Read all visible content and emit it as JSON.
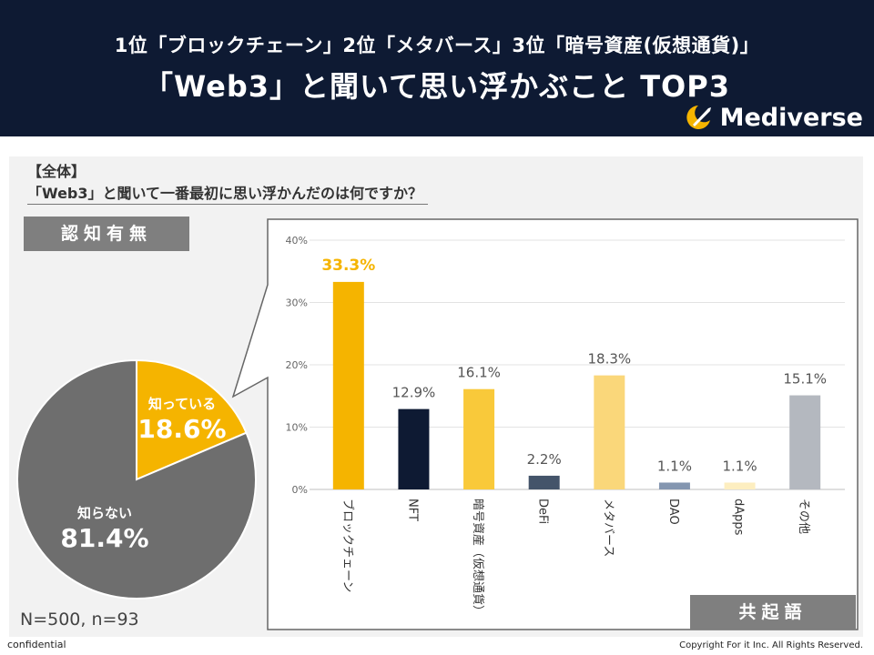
{
  "header": {
    "line1": "1位「ブロックチェーン」2位「メタバース」3位「暗号資産(仮想通貨)」",
    "line2": "「Web3」と聞いて思い浮かぶこと TOP3",
    "brand": "Mediverse"
  },
  "panel": {
    "section": "【全体】",
    "question": "「Web3」と聞いて一番最初に思い浮かんだのは何ですか？",
    "awareness_tag": "認知有無",
    "cooccur_tag": "共起語",
    "sample": "N=500, n=93"
  },
  "footer": {
    "left": "confidential",
    "right": "Copyright For it Inc. All Rights Reserved."
  },
  "chart_data": [
    {
      "type": "pie",
      "title": "認知有無",
      "slices": [
        {
          "label": "知っている",
          "value": 18.6,
          "display": "18.6%",
          "color": "#f5b400"
        },
        {
          "label": "知らない",
          "value": 81.4,
          "display": "81.4%",
          "color": "#6e6e6e"
        }
      ]
    },
    {
      "type": "bar",
      "title": "共起語",
      "categories": [
        "ブロックチェーン",
        "NFT",
        "暗号資産（仮想通貨）",
        "DeFi",
        "メタバース",
        "DAO",
        "dApps",
        "その他"
      ],
      "values": [
        33.3,
        12.9,
        16.1,
        2.2,
        18.3,
        1.1,
        1.1,
        15.1
      ],
      "value_labels": [
        "33.3%",
        "12.9%",
        "16.1%",
        "2.2%",
        "18.3%",
        "1.1%",
        "1.1%",
        "15.1%"
      ],
      "colors": [
        "#f5b400",
        "#0e1a33",
        "#f9c93a",
        "#44546a",
        "#fad77a",
        "#8496b0",
        "#fdeec0",
        "#b4b8bf"
      ],
      "label_colors": [
        "#f5b400",
        "#555555",
        "#555555",
        "#555555",
        "#555555",
        "#555555",
        "#555555",
        "#555555"
      ],
      "yticks": [
        "0%",
        "10%",
        "20%",
        "30%",
        "40%"
      ],
      "ylim": [
        0,
        40
      ],
      "grid": true
    }
  ]
}
